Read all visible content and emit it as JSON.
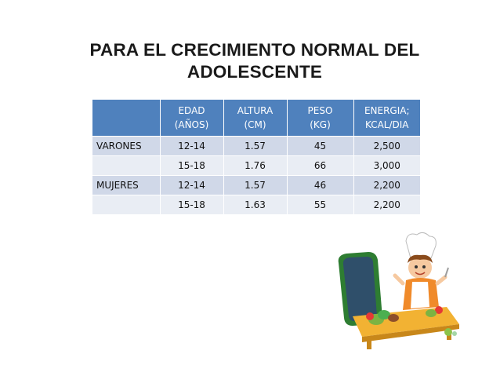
{
  "title": {
    "line1": "PARA  EL CRECIMIENTO NORMAL DEL",
    "line2": "ADOLESCENTE"
  },
  "table": {
    "headers": [
      [
        "",
        ""
      ],
      [
        "EDAD",
        "(AÑOS)"
      ],
      [
        "ALTURA",
        "(CM)"
      ],
      [
        "PESO",
        "(KG)"
      ],
      [
        "ENERGIA;",
        "KCAL/DIA"
      ]
    ],
    "rows": [
      [
        "VARONES",
        "12-14",
        "1.57",
        "45",
        "2,500"
      ],
      [
        "",
        "15-18",
        "1.76",
        "66",
        "3,000"
      ],
      [
        "MUJERES",
        "12-14",
        "1.57",
        "46",
        "2,200"
      ],
      [
        "",
        "15-18",
        "1.63",
        "55",
        "2,200"
      ]
    ]
  },
  "colors": {
    "header_bg": "#4f81bd",
    "row_odd_bg": "#d0d8e8",
    "row_even_bg": "#e9edf4"
  }
}
